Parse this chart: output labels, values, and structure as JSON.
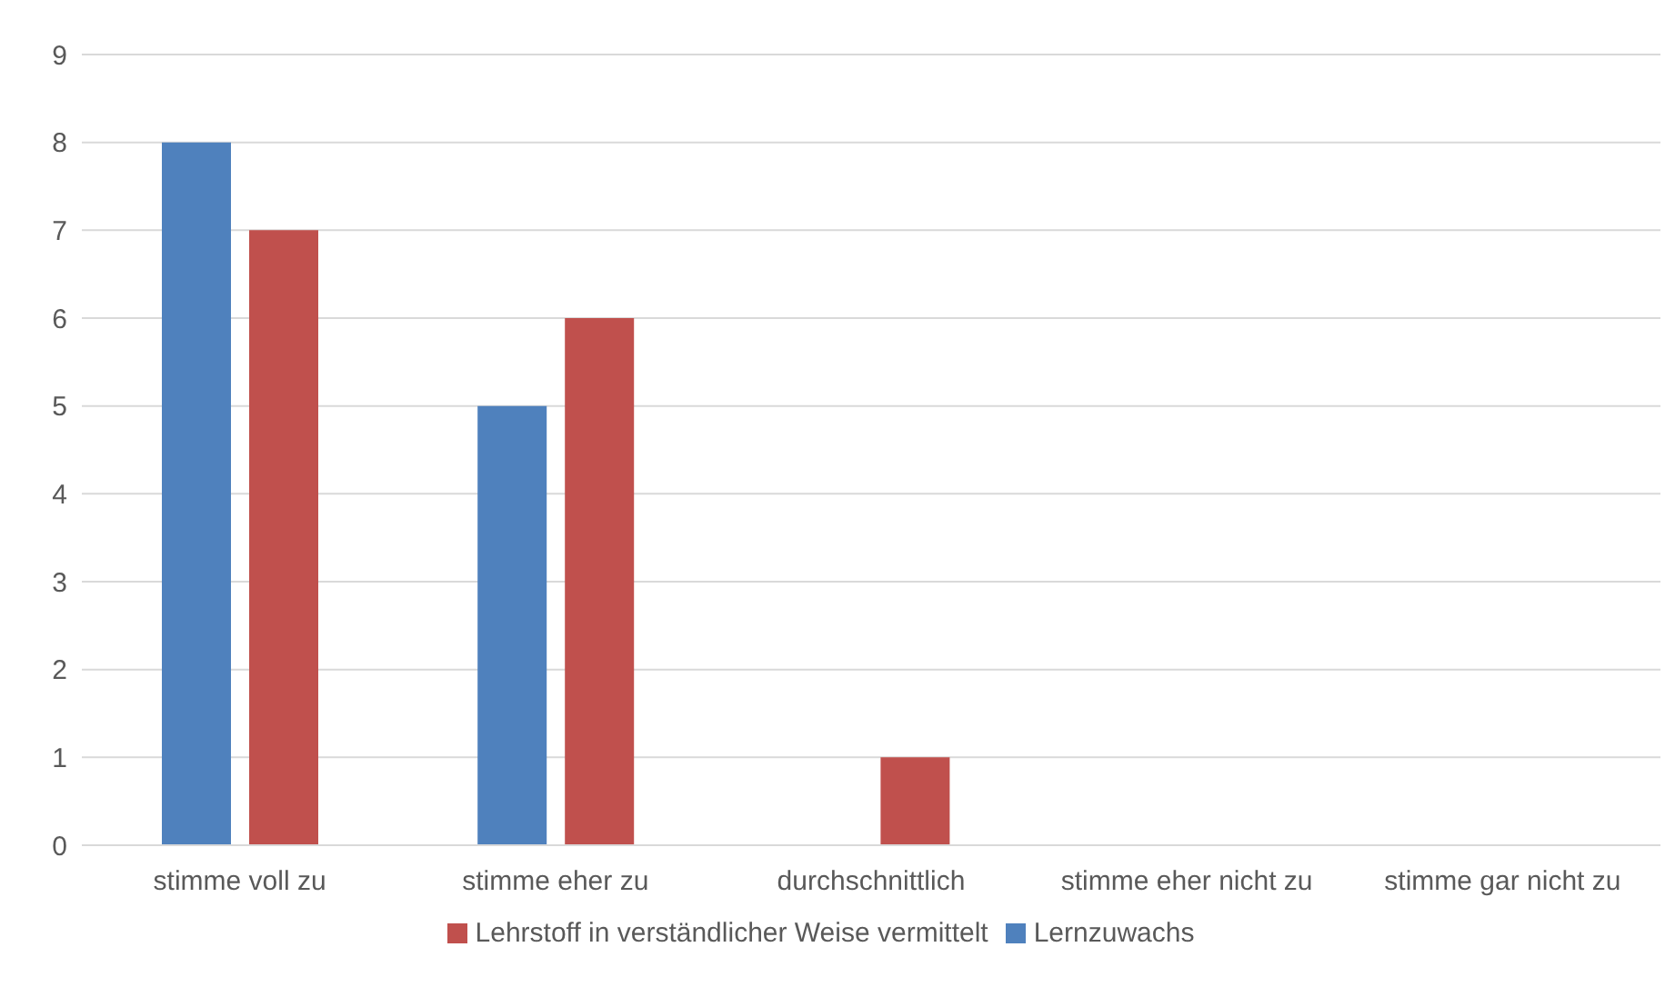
{
  "chart_data": {
    "type": "bar",
    "categories": [
      "stimme voll zu",
      "stimme eher zu",
      "durchschnittlich",
      "stimme eher nicht zu",
      "stimme gar nicht zu"
    ],
    "series": [
      {
        "name": "Lernzuwachs",
        "color": "#4f81bd",
        "values": [
          8,
          5,
          0,
          0,
          0
        ]
      },
      {
        "name": "Lehrstoff in verständlicher Weise vermittelt",
        "color": "#c0504d",
        "values": [
          7,
          6,
          1,
          0,
          0
        ]
      }
    ],
    "ylim": [
      0,
      9
    ],
    "yticks": [
      0,
      1,
      2,
      3,
      4,
      5,
      6,
      7,
      8,
      9
    ],
    "grid": "y",
    "legend": "bottom"
  }
}
